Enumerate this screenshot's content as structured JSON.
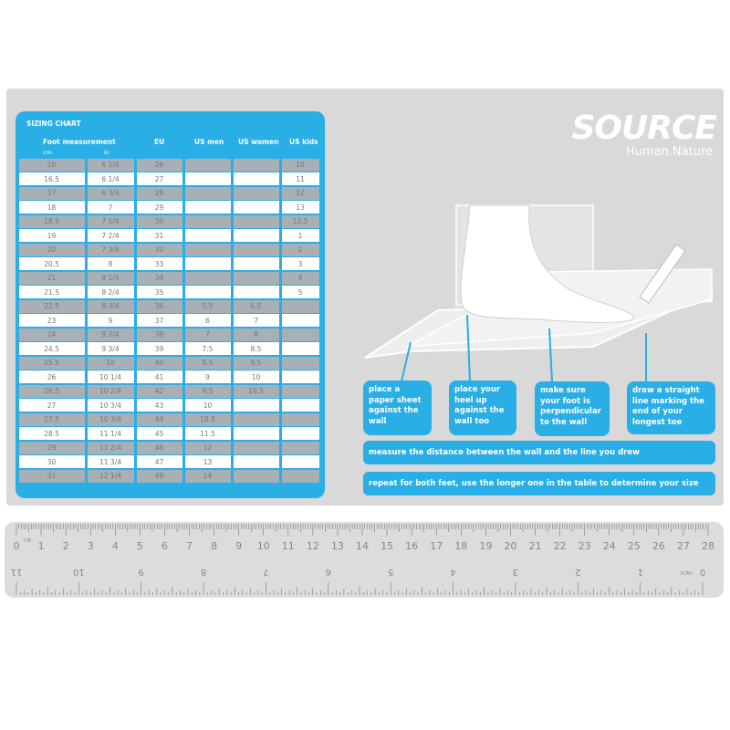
{
  "table": {
    "title": "SIZING CHART",
    "headers": {
      "foot": "Foot measurement",
      "cm": "cm",
      "in": "in",
      "eu": "EU",
      "us_men": "US men",
      "us_women": "US women",
      "us_kids": "US kids"
    },
    "rows": [
      [
        "16",
        "6 1/4",
        "26",
        "",
        "",
        "10"
      ],
      [
        "16.5",
        "6 1/4",
        "27",
        "",
        "",
        "11"
      ],
      [
        "17",
        "6 3/4",
        "28",
        "",
        "",
        "12"
      ],
      [
        "18",
        "7",
        "29",
        "",
        "",
        "13"
      ],
      [
        "18.5",
        "7 1/4",
        "30",
        "",
        "",
        "13.5"
      ],
      [
        "19",
        "7 2/4",
        "31",
        "",
        "",
        "1"
      ],
      [
        "20",
        "7 3/4",
        "32",
        "",
        "",
        "2"
      ],
      [
        "20.5",
        "8",
        "33",
        "",
        "",
        "3"
      ],
      [
        "21",
        "8 1/4",
        "34",
        "",
        "",
        "4"
      ],
      [
        "21.5",
        "8 2/4",
        "35",
        "",
        "",
        "5"
      ],
      [
        "22.5",
        "8 3/4",
        "36",
        "5.5",
        "6.5",
        ""
      ],
      [
        "23",
        "9",
        "37",
        "6",
        "7",
        ""
      ],
      [
        "24",
        "9 2/4",
        "38",
        "7",
        "8",
        ""
      ],
      [
        "24.5",
        "9 3/4",
        "39",
        "7.5",
        "8.5",
        ""
      ],
      [
        "25.5",
        "10",
        "40",
        "8.5",
        "9.5",
        ""
      ],
      [
        "26",
        "10 1/4",
        "41",
        "9",
        "10",
        ""
      ],
      [
        "26.5",
        "10 2/4",
        "42",
        "9.5",
        "10.5",
        ""
      ],
      [
        "27",
        "10 3/4",
        "43",
        "10",
        "",
        ""
      ],
      [
        "27.5",
        "10 3/4",
        "44",
        "10.5",
        "",
        ""
      ],
      [
        "28.5",
        "11 1/4",
        "45",
        "11.5",
        "",
        ""
      ],
      [
        "29",
        "11 2/4",
        "46",
        "12",
        "",
        ""
      ],
      [
        "30",
        "11 3/4",
        "47",
        "13",
        "",
        ""
      ],
      [
        "31",
        "12 1/4",
        "48",
        "14",
        "",
        ""
      ]
    ]
  },
  "logo": {
    "brand": "SOURCE",
    "tagline": "Human.Nature"
  },
  "steps": [
    "place a paper sheet against the wall",
    "place your heel up against the wall too",
    "make sure your foot is perpendicular to the wall",
    "draw a straight line marking the end of your longest toe"
  ],
  "instructions": [
    "measure the distance between the wall and the line you drew",
    "repeat for both feet, use the longer one in the table to determine your size"
  ],
  "ruler": {
    "cm_unit": "CM",
    "inch_unit": "INCH",
    "cm_max": 28,
    "inch_max": 11
  },
  "colors": {
    "accent": "#29aee6",
    "panel": "#d9d9d9",
    "row_shade": "#a8afb5"
  }
}
